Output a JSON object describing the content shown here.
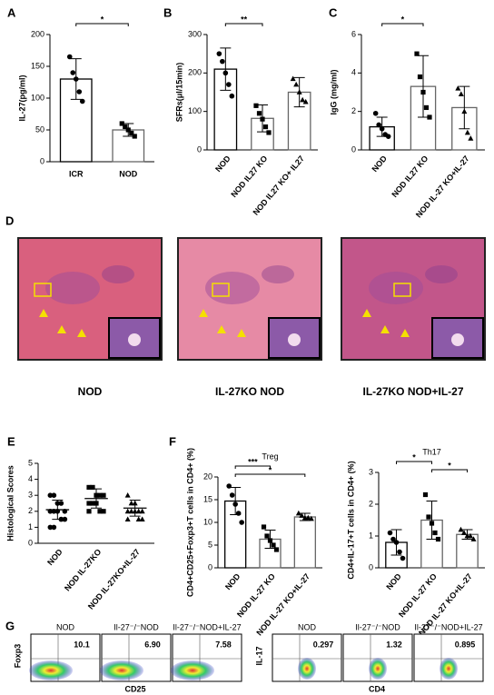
{
  "chart_data": [
    {
      "type": "bar",
      "panel": "A",
      "ylabel": "IL-27(pg/ml)",
      "categories": [
        "ICR",
        "NOD"
      ],
      "values": [
        130,
        50
      ],
      "errors": [
        32,
        10
      ],
      "points": [
        [
          165,
          140,
          130,
          110,
          95
        ],
        [
          60,
          55,
          50,
          45,
          40
        ]
      ],
      "ylim": [
        0,
        200
      ],
      "yticks": [
        0,
        50,
        100,
        150,
        200
      ],
      "significance": [
        {
          "from": 0,
          "to": 1,
          "label": "*"
        }
      ]
    },
    {
      "type": "bar",
      "panel": "B",
      "ylabel": "SFRs(μl/15min)",
      "categories": [
        "NOD",
        "NOD IL27 KO",
        "NOD IL27 KO+ IL27"
      ],
      "values": [
        210,
        82,
        150
      ],
      "errors": [
        55,
        35,
        38
      ],
      "points": [
        [
          250,
          230,
          200,
          170,
          140
        ],
        [
          115,
          95,
          80,
          60,
          45
        ],
        [
          185,
          170,
          150,
          130,
          125
        ]
      ],
      "ylim": [
        0,
        300
      ],
      "yticks": [
        0,
        100,
        200,
        300
      ],
      "significance": [
        {
          "from": 0,
          "to": 1,
          "label": "**"
        }
      ]
    },
    {
      "type": "bar",
      "panel": "C",
      "ylabel": "IgG (mg/ml)",
      "categories": [
        "NOD",
        "NOD IL27 KO",
        "NOD IL-27 KO+IL-27"
      ],
      "values": [
        1.2,
        3.3,
        2.2
      ],
      "errors": [
        0.5,
        1.6,
        1.1
      ],
      "points": [
        [
          1.9,
          1.3,
          1.1,
          0.8,
          0.7
        ],
        [
          5.0,
          3.8,
          3.0,
          2.2,
          1.7
        ],
        [
          3.2,
          2.9,
          2.0,
          0.9,
          0.6
        ]
      ],
      "ylim": [
        0,
        6
      ],
      "yticks": [
        0,
        2,
        4,
        6
      ],
      "significance": [
        {
          "from": 0,
          "to": 1,
          "label": "*"
        }
      ]
    },
    {
      "type": "dot",
      "panel": "E",
      "ylabel": "Histological Scores",
      "categories": [
        "NOD",
        "NOD IL-27KO",
        "NOD IL-27KO+IL-27"
      ],
      "values": [
        2.1,
        2.8,
        2.2
      ],
      "errors": [
        0.6,
        0.6,
        0.5
      ],
      "points": [
        [
          3,
          3,
          2.5,
          2.5,
          2,
          2,
          2,
          2,
          1.5,
          1.5,
          1,
          1
        ],
        [
          3.5,
          3.5,
          3,
          3,
          3,
          2.5,
          2.5,
          2.5,
          2,
          2,
          2
        ],
        [
          3,
          2.5,
          2.5,
          2,
          2,
          2,
          2,
          2,
          1.5,
          1.5,
          1.5
        ]
      ],
      "ylim": [
        0,
        5
      ],
      "yticks": [
        0,
        1,
        2,
        3,
        4,
        5
      ],
      "significance": []
    },
    {
      "type": "bar",
      "panel": "F",
      "title": "Treg",
      "ylabel": "CD4+CD25+Foxp3+T cells in CD4+ (%)",
      "categories": [
        "NOD",
        "NOD IL-27 KO",
        "NOD IL-27 KO+IL-27"
      ],
      "values": [
        14.7,
        6.3,
        11.2
      ],
      "errors": [
        3,
        2,
        0.8
      ],
      "points": [
        [
          18,
          16,
          14,
          12,
          10
        ],
        [
          9,
          7,
          6,
          5,
          4
        ],
        [
          12,
          11.5,
          11,
          11,
          10.8
        ]
      ],
      "ylim": [
        0,
        20
      ],
      "yticks": [
        0,
        5,
        10,
        15,
        20
      ],
      "significance": [
        {
          "from": 0,
          "to": 1,
          "label": "***"
        },
        {
          "from": 0,
          "to": 2,
          "label": "*"
        }
      ]
    },
    {
      "type": "bar",
      "title": "Th17",
      "ylabel": "CD4+IL-17+T cells in CD4+ (%)",
      "categories": [
        "NOD",
        "NOD IL-27 KO",
        "NOD IL-27 KO+IL-27"
      ],
      "values": [
        0.8,
        1.5,
        1.05
      ],
      "errors": [
        0.4,
        0.6,
        0.15
      ],
      "points": [
        [
          1.1,
          0.9,
          0.8,
          0.5,
          0.3
        ],
        [
          2.3,
          1.6,
          1.4,
          1.1,
          0.9
        ],
        [
          1.2,
          1.1,
          1.0,
          1.0,
          0.9
        ]
      ],
      "ylim": [
        0,
        3
      ],
      "yticks": [
        0,
        1,
        2,
        3
      ],
      "significance": [
        {
          "from": 0,
          "to": 1,
          "label": "*"
        },
        {
          "from": 1,
          "to": 2,
          "label": "*"
        }
      ]
    }
  ],
  "panel_d": {
    "panel": "D",
    "captions": [
      "NOD",
      "IL-27KO NOD",
      "IL-27KO NOD+IL-27"
    ]
  },
  "panel_g": {
    "panel": "G",
    "groups": [
      {
        "ylabel": "Foxp3",
        "xlabel": "CD25",
        "plots": [
          {
            "title": "NOD",
            "value": "10.1"
          },
          {
            "title": "Il-27⁻/⁻NOD",
            "value": "6.90"
          },
          {
            "title": "Il-27⁻/⁻NOD+IL-27",
            "value": "7.58"
          }
        ]
      },
      {
        "ylabel": "IL-17",
        "xlabel": "CD4",
        "plots": [
          {
            "title": "NOD",
            "value": "0.297"
          },
          {
            "title": "Il-27⁻/⁻NOD",
            "value": "1.32"
          },
          {
            "title": "Il-27⁻/⁻NOD+IL-27",
            "value": "0.895"
          }
        ]
      }
    ]
  }
}
